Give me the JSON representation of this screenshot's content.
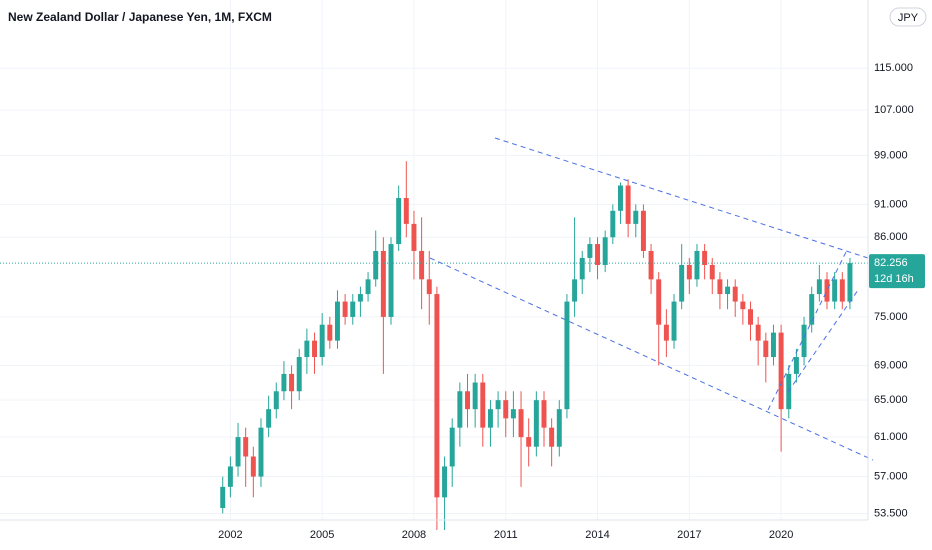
{
  "chart_data": {
    "type": "candlestick",
    "title": "New Zealand Dollar / Japanese Yen, 1M, FXCM",
    "currency": "JPY",
    "log_scale": true,
    "grid": true,
    "up_color": "#26a69a",
    "down_color": "#ef5350",
    "last_price": 82.256,
    "countdown": "12d 16h",
    "xlim": [
      1994.47,
      2022.84
    ],
    "ylim": [
      52.9,
      129.3
    ],
    "xticks": [
      2002,
      2005,
      2008,
      2011,
      2014,
      2017,
      2020
    ],
    "yticks": [
      {
        "value": 53.5,
        "label": "53.500"
      },
      {
        "value": 57,
        "label": "57.000"
      },
      {
        "value": 61,
        "label": "61.000"
      },
      {
        "value": 65,
        "label": "65.000"
      },
      {
        "value": 69,
        "label": "69.000"
      },
      {
        "value": 75,
        "label": "75.000"
      },
      {
        "value": 86,
        "label": "86.000"
      },
      {
        "value": 91,
        "label": "91.000"
      },
      {
        "value": 99,
        "label": "99.000"
      },
      {
        "value": 107,
        "label": "107.000"
      },
      {
        "value": 115,
        "label": "115.000"
      }
    ],
    "x": [
      2001.75,
      2002,
      2002.25,
      2002.5,
      2002.75,
      2003,
      2003.25,
      2003.5,
      2003.75,
      2004,
      2004.25,
      2004.5,
      2004.75,
      2005,
      2005.25,
      2005.5,
      2005.75,
      2006,
      2006.25,
      2006.5,
      2006.75,
      2007,
      2007.25,
      2007.5,
      2007.75,
      2008,
      2008.25,
      2008.5,
      2008.75,
      2009,
      2009.25,
      2009.5,
      2009.75,
      2010,
      2010.25,
      2010.5,
      2010.75,
      2011,
      2011.25,
      2011.5,
      2011.75,
      2012,
      2012.25,
      2012.5,
      2012.75,
      2013,
      2013.25,
      2013.5,
      2013.75,
      2014,
      2014.25,
      2014.5,
      2014.75,
      2015,
      2015.25,
      2015.5,
      2015.75,
      2016,
      2016.25,
      2016.5,
      2016.75,
      2017,
      2017.25,
      2017.5,
      2017.75,
      2018,
      2018.25,
      2018.5,
      2018.75,
      2019,
      2019.25,
      2019.5,
      2019.75,
      2020,
      2020.25,
      2020.5,
      2020.75,
      2021,
      2021.25,
      2021.5,
      2021.75,
      2022,
      2022.25
    ],
    "open": [
      54,
      56,
      58,
      61,
      59,
      57,
      62,
      64,
      66,
      68,
      66,
      70,
      72,
      70,
      74,
      72,
      77,
      75,
      77,
      78,
      80,
      84,
      75,
      85,
      92,
      88,
      84,
      80,
      78,
      55,
      58,
      62,
      66,
      64,
      67,
      62,
      64,
      65,
      63,
      64,
      61,
      60,
      65,
      62,
      60,
      64,
      77,
      80,
      83,
      85,
      82,
      86,
      90,
      94,
      88,
      90,
      84,
      80,
      74,
      72,
      77,
      82,
      80,
      84,
      82,
      80,
      78,
      79,
      77,
      76,
      74,
      72,
      70,
      73,
      64,
      68,
      70,
      74,
      78,
      80,
      77,
      80,
      77
    ],
    "high": [
      57,
      59,
      62.5,
      62,
      60,
      63,
      65.5,
      67,
      69.5,
      69,
      71,
      73.5,
      73,
      75.5,
      75,
      78.5,
      78,
      78,
      79,
      81,
      87,
      86,
      86,
      94,
      98,
      90,
      89,
      84,
      79,
      59,
      63,
      67,
      68,
      68,
      68,
      65,
      66,
      66,
      66,
      66,
      63,
      66,
      66,
      63,
      65,
      78,
      89,
      84,
      86,
      86,
      87,
      91,
      94.5,
      95,
      91,
      91,
      85,
      81,
      76,
      78,
      85,
      83,
      85,
      85,
      83,
      81,
      80,
      80,
      78,
      77,
      75,
      73,
      74,
      74,
      69,
      71,
      75,
      79,
      82,
      81,
      81,
      81,
      83
    ],
    "low": [
      53.5,
      55,
      57,
      56,
      55,
      56,
      61,
      63,
      65,
      64,
      65,
      68,
      68,
      69,
      71,
      71,
      74,
      74,
      75,
      77,
      79,
      68,
      74,
      84,
      86,
      80,
      76,
      74,
      52,
      52,
      56,
      60,
      62,
      62,
      60,
      60,
      62,
      61,
      61,
      56,
      58,
      59,
      60,
      58,
      59,
      63,
      75,
      78,
      81,
      80,
      81,
      85,
      88,
      86,
      86,
      83,
      78,
      69,
      70,
      71,
      76,
      78,
      79,
      80,
      78,
      76,
      76,
      75,
      74,
      72,
      69,
      67,
      69,
      59.5,
      63,
      67,
      69,
      73,
      77,
      76,
      76,
      76,
      76
    ],
    "close": [
      56,
      58,
      61,
      59,
      57,
      62,
      64,
      66,
      68,
      66,
      70,
      72,
      70,
      74,
      72,
      77,
      75,
      77,
      78,
      80,
      84,
      75,
      85,
      92,
      88,
      84,
      80,
      78,
      55,
      58,
      62,
      66,
      64,
      67,
      62,
      64,
      65,
      63,
      64,
      61,
      60,
      65,
      62,
      60,
      64,
      77,
      80,
      83,
      85,
      82,
      86,
      90,
      94,
      88,
      90,
      84,
      80,
      74,
      72,
      77,
      82,
      80,
      84,
      82,
      80,
      78,
      79,
      77,
      76,
      74,
      72,
      70,
      73,
      64,
      68,
      70,
      74,
      78,
      80,
      77,
      80,
      77,
      82.256
    ]
  }
}
